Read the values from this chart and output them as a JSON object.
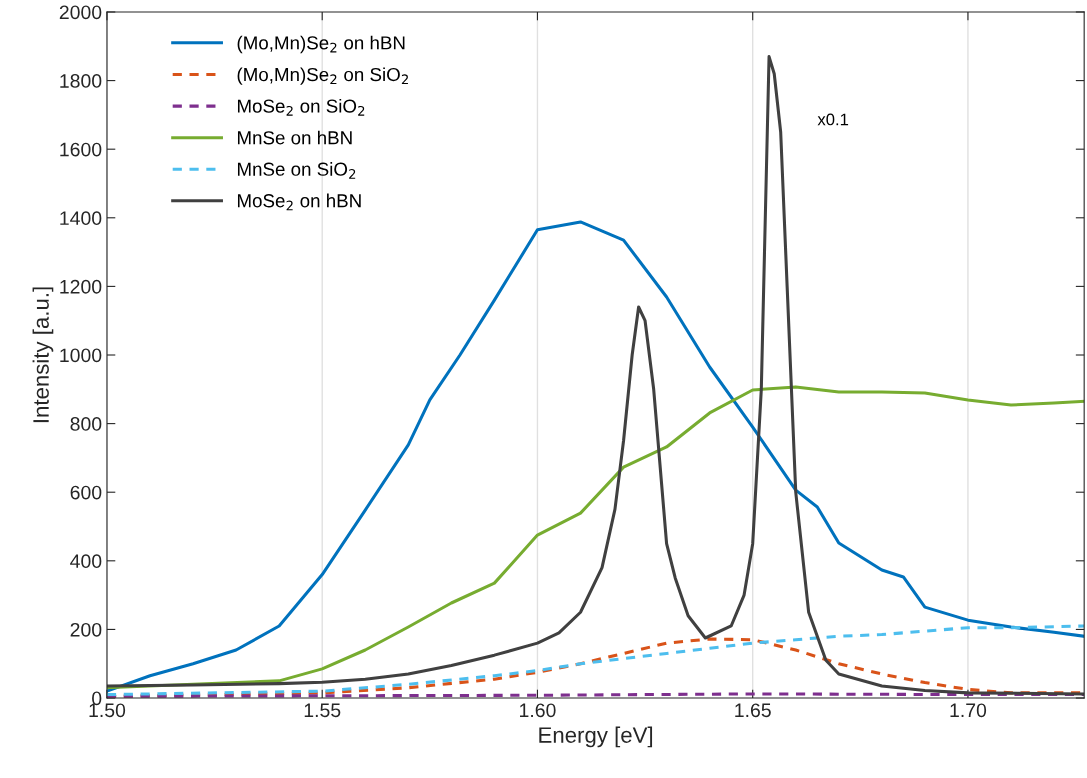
{
  "chart_data": {
    "type": "line",
    "xlabel": "Energy [eV]",
    "ylabel": "Intensity [a.u.]",
    "xlim": [
      1.5,
      1.727
    ],
    "xticks": [
      {
        "value": 1.5,
        "label": "1.50"
      },
      {
        "value": 1.55,
        "label": "1.55"
      },
      {
        "value": 1.6,
        "label": "1.60"
      },
      {
        "value": 1.65,
        "label": "1.65"
      },
      {
        "value": 1.7,
        "label": "1.70"
      }
    ],
    "ylim": [
      0,
      2000
    ],
    "yticks": [
      0,
      200,
      400,
      600,
      800,
      1000,
      1200,
      1400,
      1600,
      1800,
      2000
    ],
    "grid": "x",
    "legend": "top left",
    "annotations": [
      "x0.1"
    ],
    "series": [
      {
        "name": "(Mo,Mn)Se$_{2}$ on hBN",
        "color": "#0072bd",
        "line_style": "solid",
        "x": [
          1.5,
          1.51,
          1.52,
          1.53,
          1.54,
          1.55,
          1.56,
          1.57,
          1.575,
          1.582,
          1.59,
          1.6,
          1.61,
          1.62,
          1.63,
          1.64,
          1.65,
          1.66,
          1.665,
          1.67,
          1.68,
          1.685,
          1.69,
          1.7,
          1.71,
          1.72,
          1.727
        ],
        "values": [
          20,
          65,
          100,
          140,
          210,
          360,
          548,
          738,
          869,
          1000,
          1160,
          1365,
          1388,
          1335,
          1169,
          965,
          790,
          606,
          557,
          452,
          373,
          353,
          265,
          227,
          207,
          192,
          180
        ]
      },
      {
        "name": "(Mo,Mn)Se$_{2}$ on SiO$_{2}$",
        "color": "#d95319",
        "line_style": "dashed",
        "x": [
          1.5,
          1.55,
          1.57,
          1.59,
          1.6,
          1.61,
          1.62,
          1.63,
          1.64,
          1.65,
          1.66,
          1.67,
          1.68,
          1.69,
          1.7,
          1.71,
          1.727
        ],
        "values": [
          5,
          15,
          30,
          55,
          75,
          100,
          130,
          160,
          172,
          170,
          140,
          100,
          70,
          45,
          25,
          15,
          15
        ]
      },
      {
        "name": "MoSe$_{2}$ on SiO$_{2}$",
        "color": "#7e2f8e",
        "line_style": "dashed",
        "x": [
          1.5,
          1.6,
          1.65,
          1.7,
          1.727
        ],
        "values": [
          5,
          8,
          12,
          10,
          10
        ]
      },
      {
        "name": "MnSe on hBN",
        "color": "#77ac30",
        "line_style": "solid",
        "x": [
          1.5,
          1.52,
          1.54,
          1.55,
          1.56,
          1.57,
          1.58,
          1.59,
          1.6,
          1.61,
          1.62,
          1.63,
          1.64,
          1.65,
          1.66,
          1.67,
          1.68,
          1.69,
          1.7,
          1.71,
          1.72,
          1.727
        ],
        "values": [
          30,
          40,
          50,
          85,
          140,
          207,
          277,
          335,
          475,
          539,
          673,
          732,
          831,
          898,
          907,
          892,
          892,
          889,
          869,
          854,
          860,
          865
        ]
      },
      {
        "name": "MnSe on SiO$_{2}$",
        "color": "#4dbeee",
        "line_style": "dashed",
        "x": [
          1.5,
          1.55,
          1.57,
          1.59,
          1.6,
          1.61,
          1.62,
          1.63,
          1.64,
          1.65,
          1.66,
          1.67,
          1.68,
          1.69,
          1.7,
          1.71,
          1.727
        ],
        "values": [
          10,
          20,
          40,
          65,
          80,
          100,
          115,
          130,
          145,
          160,
          170,
          180,
          185,
          195,
          205,
          205,
          210
        ]
      },
      {
        "name": "MoSe$_{2}$ on hBN",
        "color": "#404040",
        "line_style": "solid",
        "x": [
          1.5,
          1.52,
          1.54,
          1.55,
          1.56,
          1.57,
          1.58,
          1.59,
          1.6,
          1.605,
          1.61,
          1.615,
          1.618,
          1.62,
          1.622,
          1.6235,
          1.625,
          1.627,
          1.63,
          1.632,
          1.635,
          1.639,
          1.645,
          1.648,
          1.65,
          1.652,
          1.6538,
          1.655,
          1.6565,
          1.658,
          1.66,
          1.663,
          1.667,
          1.67,
          1.68,
          1.69,
          1.7,
          1.727
        ],
        "values": [
          35,
          38,
          42,
          46,
          55,
          70,
          95,
          125,
          160,
          190,
          250,
          380,
          550,
          750,
          1000,
          1140,
          1100,
          900,
          450,
          350,
          240,
          175,
          210,
          300,
          450,
          900,
          1870,
          1820,
          1650,
          1200,
          600,
          250,
          110,
          70,
          35,
          22,
          15,
          12
        ]
      }
    ]
  }
}
